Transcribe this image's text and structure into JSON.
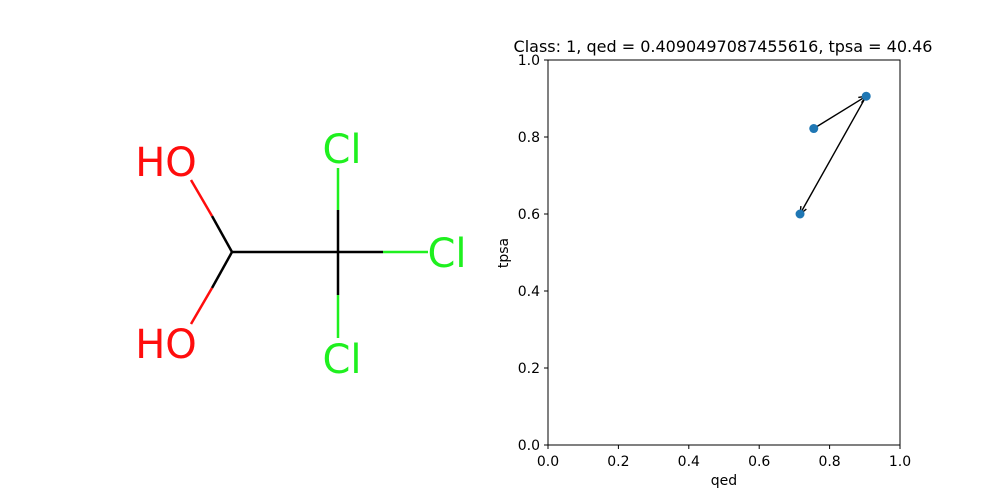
{
  "molecule": {
    "atoms": [
      {
        "label": "HO",
        "color": "#FF0D0D"
      },
      {
        "label": "HO",
        "color": "#FF0D0D"
      },
      {
        "label": "Cl",
        "color": "#1FF01F"
      },
      {
        "label": "Cl",
        "color": "#1FF01F"
      },
      {
        "label": "Cl",
        "color": "#1FF01F"
      }
    ],
    "bond_color": "#000000"
  },
  "chart_data": {
    "type": "scatter",
    "title": "Class: 1, qed = 0.4090497087455616, tpsa = 40.46",
    "xlabel": "qed",
    "ylabel": "tpsa",
    "xlim": [
      0.0,
      1.0
    ],
    "ylim": [
      0.0,
      1.0
    ],
    "xticks": [
      "0.0",
      "0.2",
      "0.4",
      "0.6",
      "0.8",
      "1.0"
    ],
    "yticks": [
      "0.0",
      "0.2",
      "0.4",
      "0.6",
      "0.8",
      "1.0"
    ],
    "points": [
      {
        "x": 0.755,
        "y": 0.822
      },
      {
        "x": 0.904,
        "y": 0.906
      },
      {
        "x": 0.716,
        "y": 0.6
      }
    ],
    "arrows": [
      {
        "from": 0,
        "to": 1
      },
      {
        "from": 1,
        "to": 2
      }
    ],
    "point_color": "#1f77b4",
    "grid": false
  }
}
